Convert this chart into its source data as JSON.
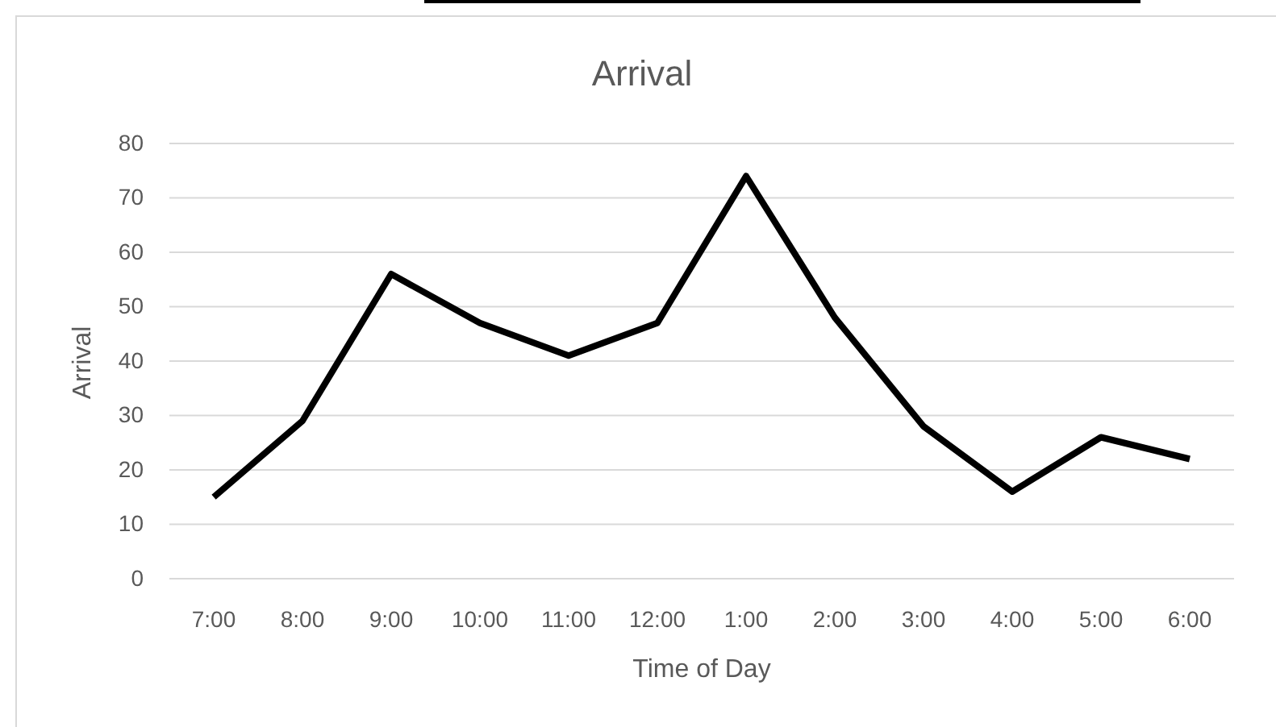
{
  "chart_data": {
    "type": "line",
    "title": "Arrival",
    "xlabel": "Time of Day",
    "ylabel": "Arrival",
    "categories": [
      "7:00",
      "8:00",
      "9:00",
      "10:00",
      "11:00",
      "12:00",
      "1:00",
      "2:00",
      "3:00",
      "4:00",
      "5:00",
      "6:00"
    ],
    "series": [
      {
        "color": "#000000",
        "values": [
          15,
          29,
          56,
          47,
          41,
          47,
          74,
          48,
          28,
          16,
          26,
          22
        ]
      }
    ],
    "ylim": [
      0,
      80
    ],
    "yticks": [
      0,
      10,
      20,
      30,
      40,
      50,
      60,
      70,
      80
    ],
    "grid": "y",
    "marker": "none",
    "line_style": "solid"
  }
}
